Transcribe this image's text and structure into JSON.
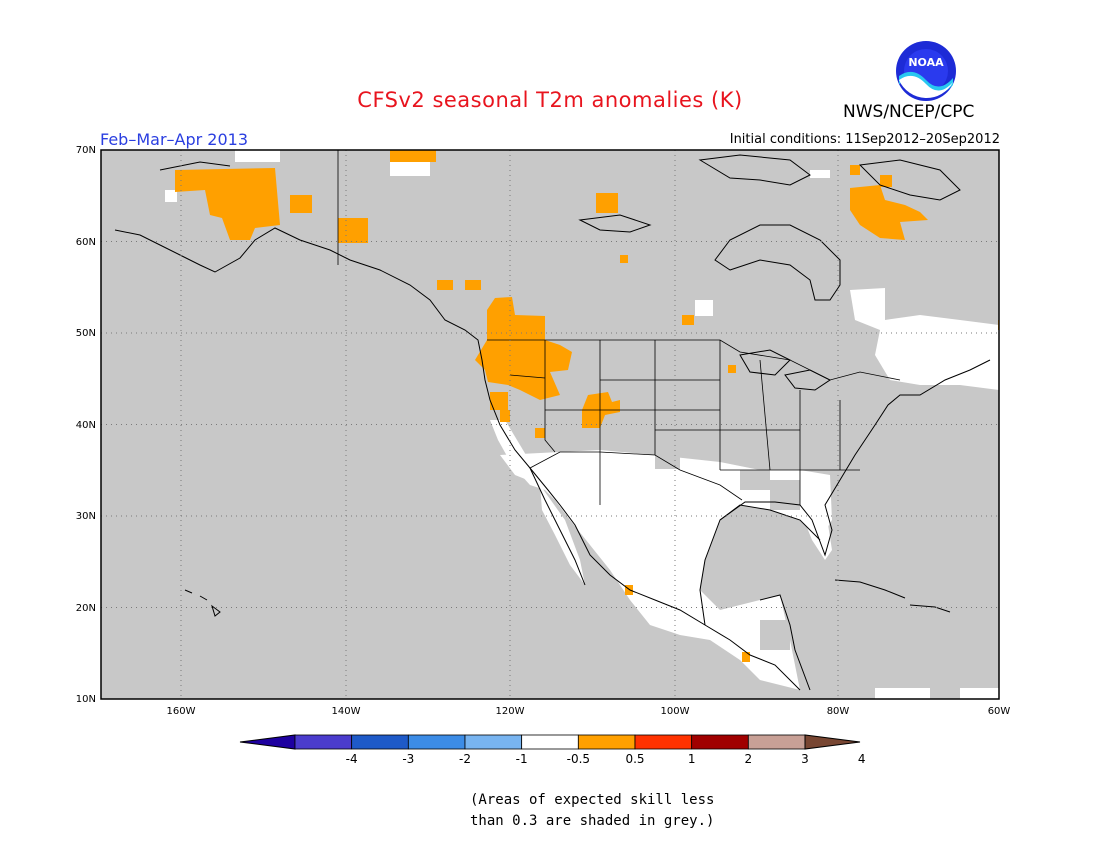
{
  "header": {
    "title": "CFSv2 seasonal T2m anomalies (K)",
    "agency": "NWS/NCEP/CPC",
    "season": "Feb–Mar–Apr 2013",
    "initial_conditions": "Initial conditions: 11Sep2012–20Sep2012",
    "logo_text": "NOAA"
  },
  "map": {
    "projection": "cylindrical",
    "lon_range": [
      -172,
      -60
    ],
    "lat_range": [
      10,
      70
    ],
    "lat_labels": [
      "70N",
      "60N",
      "50N",
      "40N",
      "30N",
      "20N",
      "10N"
    ],
    "lon_labels": [
      "160W",
      "140W",
      "120W",
      "100W",
      "80W",
      "60W"
    ],
    "grid": true,
    "colors": {
      "low_skill": "#c8c8c8",
      "neutral": "#ffffff",
      "warm_0_5_to_1": "#ffa000"
    }
  },
  "legend": {
    "tick_labels": [
      "-4",
      "-3",
      "-2",
      "-1",
      "-0.5",
      "0.5",
      "1",
      "2",
      "3",
      "4"
    ],
    "colors": [
      "#1e00a0",
      "#4b3ccd",
      "#1e5ac8",
      "#3c8ce6",
      "#78b4f0",
      "#ffffff",
      "#ffa000",
      "#ff3200",
      "#a00000",
      "#c8a096",
      "#784632"
    ]
  },
  "note": {
    "line1": "(Areas of expected skill less",
    "line2": "than 0.3 are shaded in grey.)"
  }
}
